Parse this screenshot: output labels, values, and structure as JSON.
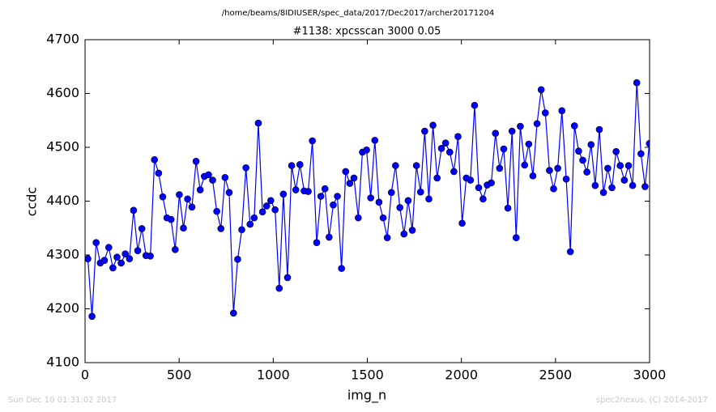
{
  "chart_data": {
    "type": "line",
    "suptitle": "/home/beams/8IDIUSER/spec_data/2017/Dec2017/archer20171204",
    "title": "#1138: xpcsscan 3000 0.05",
    "x_label": "img_n",
    "y_label": "ccdc",
    "footer_left": "Sun Dec 10 01:31:02 2017",
    "footer_right": "spec2nexus, (C) 2014-2017",
    "xlim": [
      0,
      3000
    ],
    "ylim": [
      4100,
      4700
    ],
    "xticks": [
      0,
      500,
      1000,
      1500,
      2000,
      2500,
      3000
    ],
    "yticks": [
      4100,
      4200,
      4300,
      4400,
      4500,
      4600,
      4700
    ],
    "x": [
      15,
      37,
      59,
      81,
      103,
      126,
      148,
      170,
      192,
      214,
      236,
      258,
      280,
      302,
      324,
      347,
      369,
      391,
      413,
      435,
      457,
      479,
      501,
      523,
      545,
      568,
      590,
      612,
      634,
      656,
      678,
      700,
      722,
      744,
      766,
      789,
      811,
      833,
      855,
      877,
      899,
      921,
      943,
      965,
      987,
      1010,
      1032,
      1054,
      1076,
      1098,
      1120,
      1142,
      1164,
      1186,
      1208,
      1231,
      1253,
      1275,
      1297,
      1319,
      1341,
      1363,
      1385,
      1407,
      1429,
      1452,
      1474,
      1496,
      1518,
      1540,
      1562,
      1584,
      1606,
      1628,
      1650,
      1673,
      1695,
      1717,
      1739,
      1761,
      1783,
      1805,
      1827,
      1849,
      1871,
      1894,
      1916,
      1938,
      1960,
      1982,
      2004,
      2026,
      2048,
      2070,
      2092,
      2115,
      2137,
      2159,
      2181,
      2203,
      2225,
      2247,
      2269,
      2291,
      2313,
      2336,
      2358,
      2380,
      2402,
      2424,
      2446,
      2468,
      2490,
      2512,
      2534,
      2557,
      2579,
      2601,
      2623,
      2645,
      2667,
      2689,
      2711,
      2733,
      2755,
      2778,
      2800,
      2822,
      2844,
      2866,
      2888,
      2910,
      2932,
      2954,
      2976,
      2999
    ],
    "series": [
      {
        "color": "#0000ff",
        "values": [
          4293,
          4186,
          4323,
          4285,
          4290,
          4314,
          4276,
          4296,
          4285,
          4302,
          4293,
          4383,
          4308,
          4349,
          4299,
          4298,
          4477,
          4452,
          4408,
          4369,
          4366,
          4310,
          4412,
          4350,
          4404,
          4389,
          4474,
          4421,
          4446,
          4449,
          4439,
          4381,
          4349,
          4444,
          4416,
          4192,
          4292,
          4347,
          4462,
          4357,
          4369,
          4545,
          4380,
          4391,
          4401,
          4384,
          4238,
          4413,
          4258,
          4466,
          4421,
          4468,
          4419,
          4418,
          4512,
          4323,
          4409,
          4423,
          4333,
          4393,
          4409,
          4275,
          4455,
          4433,
          4443,
          4369,
          4491,
          4495,
          4406,
          4513,
          4398,
          4369,
          4332,
          4416,
          4466,
          4388,
          4339,
          4401,
          4346,
          4466,
          4417,
          4530,
          4404,
          4541,
          4443,
          4498,
          4508,
          4491,
          4455,
          4520,
          4359,
          4443,
          4439,
          4578,
          4425,
          4404,
          4430,
          4434,
          4526,
          4461,
          4497,
          4387,
          4530,
          4332,
          4539,
          4467,
          4506,
          4447,
          4544,
          4607,
          4564,
          4457,
          4423,
          4461,
          4568,
          4441,
          4306,
          4540,
          4493,
          4476,
          4454,
          4505,
          4429,
          4533,
          4416,
          4461,
          4425,
          4492,
          4466,
          4439,
          4466,
          4429,
          4620,
          4488,
          4427,
          4507
        ]
      }
    ]
  }
}
